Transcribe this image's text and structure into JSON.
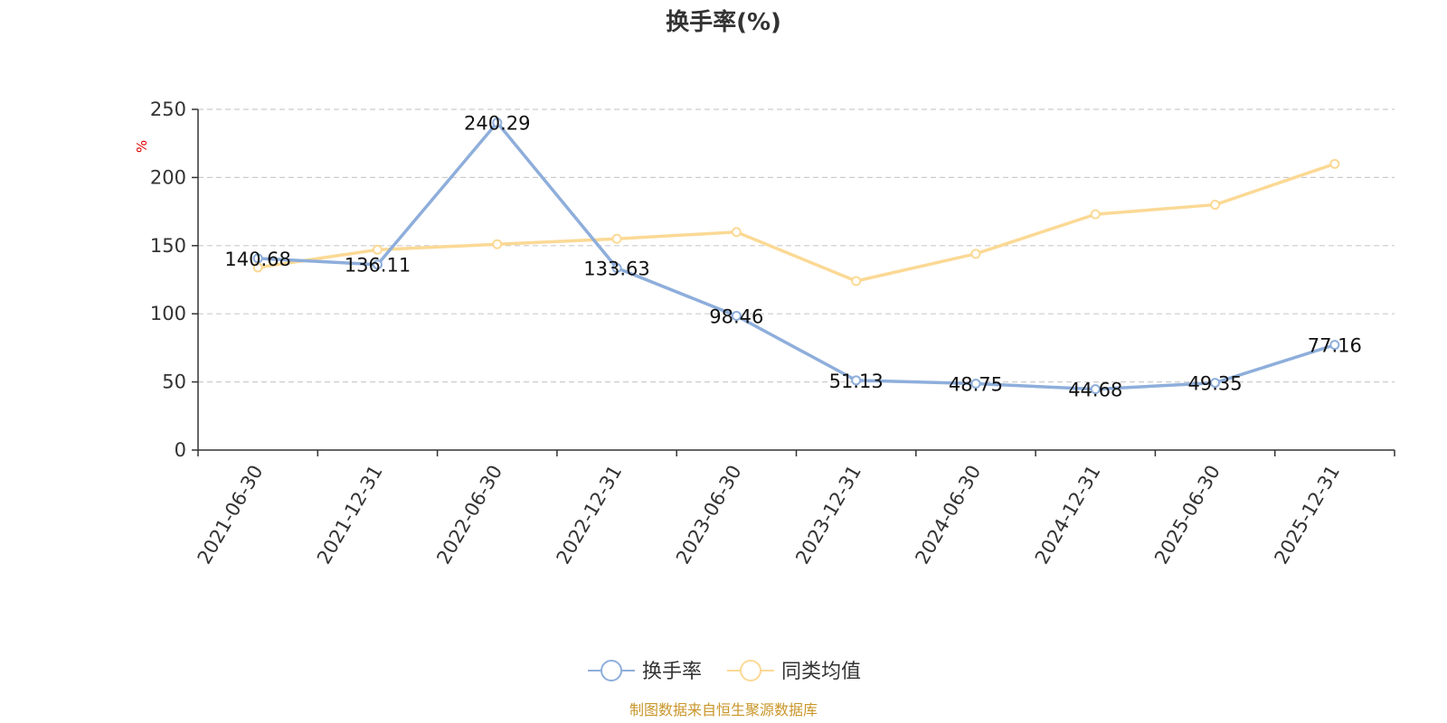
{
  "source_note": "制图数据来自恒生聚源数据库",
  "colors": {
    "series_main": "#8eaedb",
    "series_avg": "#fbd995",
    "grid": "#cccccc",
    "axis": "#333333",
    "unit": "#e00000",
    "source": "#c9962a"
  },
  "chart_data": {
    "type": "line",
    "title": "换手率(%)",
    "ylabel": "%",
    "xlabel": "",
    "ylim": [
      0,
      250
    ],
    "yticks": [
      0,
      50,
      100,
      150,
      200,
      250
    ],
    "grid": true,
    "legend_position": "bottom-center",
    "categories": [
      "2021-06-30",
      "2021-12-31",
      "2022-06-30",
      "2022-12-31",
      "2023-06-30",
      "2023-12-31",
      "2024-06-30",
      "2024-12-31",
      "2025-06-30",
      "2025-12-31"
    ],
    "series": [
      {
        "name": "换手率",
        "values": [
          140.68,
          136.11,
          240.29,
          133.63,
          98.46,
          51.13,
          48.75,
          44.68,
          49.35,
          77.16
        ],
        "labels": [
          "140.68",
          "136.11",
          "240.29",
          "133.63",
          "98.46",
          "51.13",
          "48.75",
          "44.68",
          "49.35",
          "77.16"
        ],
        "color": "#8eaedb"
      },
      {
        "name": "同类均值",
        "values": [
          134,
          147,
          151,
          155,
          160,
          124,
          144,
          173,
          180,
          210
        ],
        "color": "#fbd995"
      }
    ]
  }
}
